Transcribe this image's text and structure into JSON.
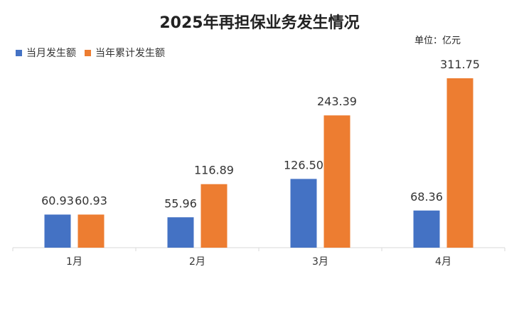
{
  "chart_data": {
    "type": "bar",
    "title": "2025年再担保业务发生情况",
    "unit_label": "单位：亿元",
    "categories": [
      "1月",
      "2月",
      "3月",
      "4月"
    ],
    "series": [
      {
        "name": "当月发生额",
        "color": "#4472C4",
        "values": [
          60.93,
          55.96,
          126.5,
          68.36
        ]
      },
      {
        "name": "当年累计发生额",
        "color": "#ED7D31",
        "values": [
          60.93,
          116.89,
          243.39,
          311.75
        ]
      }
    ],
    "data_labels": [
      [
        "60.93",
        "55.96",
        "126.50",
        "68.36"
      ],
      [
        "60.93",
        "116.89",
        "243.39",
        "311.75"
      ]
    ],
    "ylim": [
      0,
      330
    ],
    "grid": false,
    "legend": "top-left"
  }
}
